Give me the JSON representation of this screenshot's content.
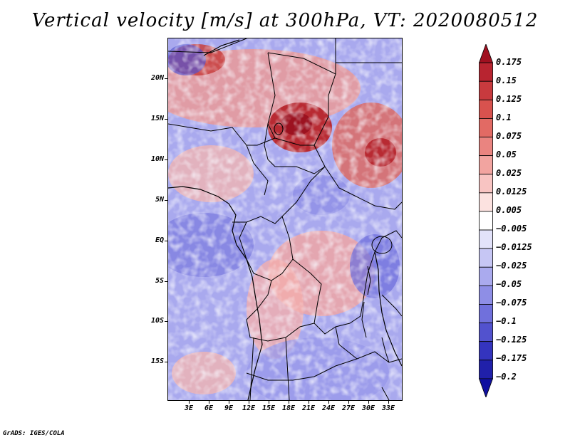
{
  "title": "Vertical velocity [m/s] at 300hPa, VT: 2020080512",
  "credit": "GrADS: IGES/COLA",
  "map": {
    "type": "heatmap",
    "lat_labels": [
      "20N",
      "15N",
      "10N",
      "5N",
      "EQ",
      "5S",
      "10S",
      "15S"
    ],
    "lat_values": [
      20,
      15,
      10,
      5,
      0,
      -5,
      -10,
      -15
    ],
    "lon_labels": [
      "3E",
      "6E",
      "9E",
      "12E",
      "15E",
      "18E",
      "21E",
      "24E",
      "27E",
      "30E",
      "33E"
    ],
    "lon_values": [
      3,
      6,
      9,
      12,
      15,
      18,
      21,
      24,
      27,
      30,
      33
    ],
    "extent": {
      "lon": [
        0.4,
        34.6
      ],
      "lat": [
        -19.2,
        24.8
      ]
    }
  },
  "colorbar": {
    "labels": [
      "0.175",
      "0.15",
      "0.125",
      "0.1",
      "0.075",
      "0.05",
      "0.025",
      "0.0125",
      "0.005",
      "−0.005",
      "−0.0125",
      "−0.025",
      "−0.05",
      "−0.075",
      "−0.1",
      "−0.125",
      "−0.175",
      "−0.2"
    ],
    "colors": [
      "#a01020",
      "#b82430",
      "#c83a3e",
      "#d8524e",
      "#e26a64",
      "#ea8480",
      "#f2a4a0",
      "#f8c4c2",
      "#fce2e0",
      "#ffffff",
      "#e2e2fa",
      "#c6c6f4",
      "#aaaaee",
      "#8e8ee6",
      "#7070dc",
      "#5252ce",
      "#3434be",
      "#2020aa",
      "#1010a0"
    ]
  }
}
